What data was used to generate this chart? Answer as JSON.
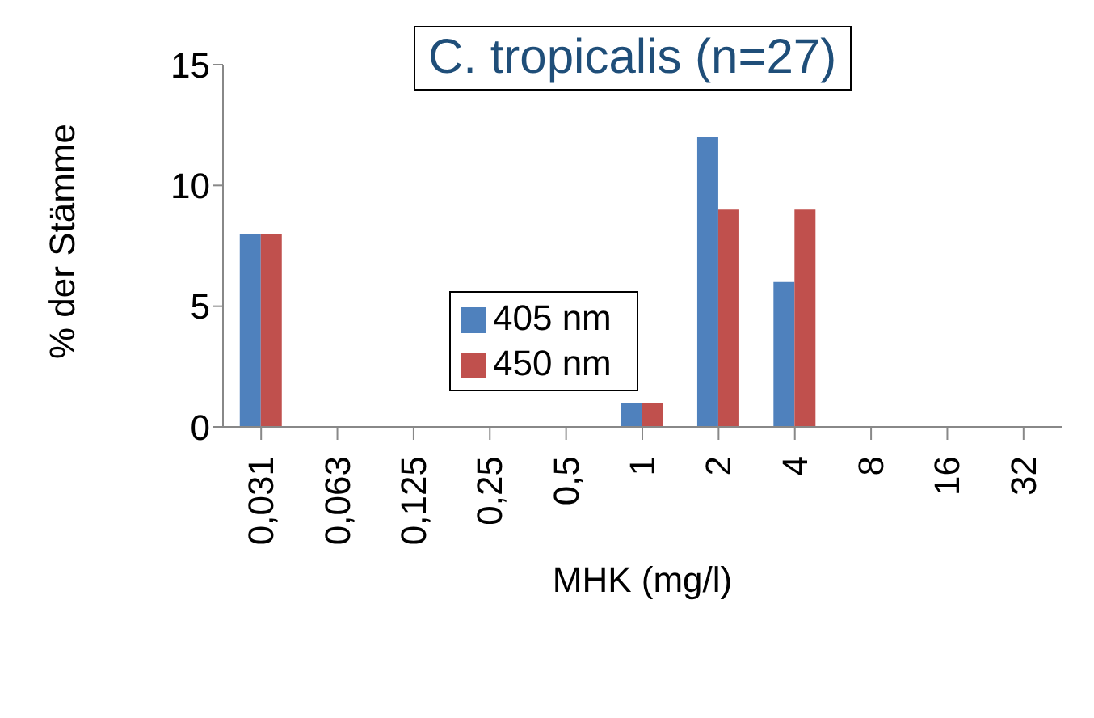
{
  "chart_data": {
    "type": "bar",
    "title": "C. tropicalis (n=27)",
    "xlabel": "MHK (mg/l)",
    "ylabel": "% der Stämme",
    "categories": [
      "0,031",
      "0,063",
      "0,125",
      "0,25",
      "0,5",
      "1",
      "2",
      "4",
      "8",
      "16",
      "32"
    ],
    "series": [
      {
        "name": "405 nm",
        "color": "#4f81bd",
        "values": [
          8,
          0,
          0,
          0,
          0,
          1,
          12,
          6,
          0,
          0,
          0
        ]
      },
      {
        "name": "450 nm",
        "color": "#c0504d",
        "values": [
          8,
          0,
          0,
          0,
          0,
          1,
          9,
          9,
          0,
          0,
          0
        ]
      }
    ],
    "ylim": [
      0,
      15
    ],
    "yticks": [
      0,
      5,
      10,
      15
    ],
    "grid": false,
    "legend": "center"
  }
}
